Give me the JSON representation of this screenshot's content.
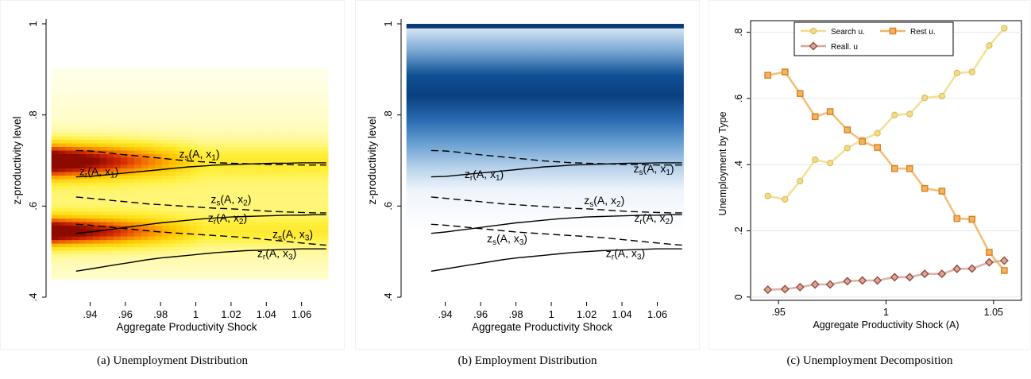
{
  "captions": {
    "a": "(a) Unemployment Distribution",
    "b": "(b) Employment Distribution",
    "c": "(c) Unemployment Decomposition"
  },
  "chart_data": [
    {
      "id": "a",
      "type": "heatmap",
      "title": "",
      "xlabel": "Aggregate Productivity Shock",
      "ylabel": "z-productivity level",
      "xlim": [
        0.915,
        1.08
      ],
      "ylim": [
        0.4,
        1.0
      ],
      "x_ticks": [
        0.94,
        0.96,
        0.98,
        1.0,
        1.02,
        1.04,
        1.06
      ],
      "x_tick_labels": [
        ".94",
        ".96",
        ".98",
        "1",
        "1.02",
        "1.04",
        "1.06"
      ],
      "y_ticks": [
        0.4,
        0.6,
        0.8,
        1.0
      ],
      "y_tick_labels": [
        ".4",
        ".6",
        ".8",
        "1"
      ],
      "heatmap_colors": "white-yellow-red",
      "grid": false,
      "x": [
        0.932,
        0.94,
        0.948,
        0.956,
        0.964,
        0.972,
        0.98,
        0.988,
        0.996,
        1.004,
        1.012,
        1.02,
        1.028,
        1.036,
        1.044,
        1.052,
        1.06,
        1.068,
        1.074
      ],
      "series": [
        {
          "name": "zs(A, x1)",
          "style": "dashed",
          "label_sub": "s",
          "label_x": "x",
          "label_idx": "1",
          "values": [
            0.722,
            0.721,
            0.718,
            0.714,
            0.711,
            0.708,
            0.705,
            0.702,
            0.699,
            0.697,
            0.695,
            0.694,
            0.693,
            0.692,
            0.691,
            0.691,
            0.69,
            0.69,
            0.69
          ]
        },
        {
          "name": "zr(A, x1)",
          "style": "solid",
          "label_sub": "r",
          "label_x": "x",
          "label_idx": "1",
          "values": [
            0.664,
            0.665,
            0.668,
            0.671,
            0.674,
            0.677,
            0.68,
            0.683,
            0.686,
            0.688,
            0.69,
            0.691,
            0.692,
            0.693,
            0.694,
            0.694,
            0.695,
            0.695,
            0.695
          ]
        },
        {
          "name": "zs(A, x2)",
          "style": "dashed",
          "label_sub": "s",
          "label_x": "x",
          "label_idx": "2",
          "values": [
            0.62,
            0.617,
            0.614,
            0.611,
            0.608,
            0.605,
            0.603,
            0.601,
            0.599,
            0.597,
            0.595,
            0.594,
            0.592,
            0.59,
            0.588,
            0.587,
            0.586,
            0.585,
            0.585
          ]
        },
        {
          "name": "zr(A, x2)",
          "style": "solid",
          "label_sub": "r",
          "label_x": "x",
          "label_idx": "2",
          "values": [
            0.54,
            0.543,
            0.547,
            0.551,
            0.555,
            0.559,
            0.563,
            0.566,
            0.569,
            0.572,
            0.574,
            0.576,
            0.577,
            0.578,
            0.579,
            0.58,
            0.58,
            0.581,
            0.581
          ]
        },
        {
          "name": "zs(A, x3)",
          "style": "dashed",
          "label_sub": "s",
          "label_x": "x",
          "label_idx": "3",
          "values": [
            0.56,
            0.558,
            0.555,
            0.552,
            0.549,
            0.546,
            0.543,
            0.541,
            0.539,
            0.537,
            0.535,
            0.533,
            0.531,
            0.528,
            0.525,
            0.522,
            0.519,
            0.516,
            0.514
          ]
        },
        {
          "name": "zr(A, x3)",
          "style": "solid",
          "label_sub": "r",
          "label_x": "x",
          "label_idx": "3",
          "values": [
            0.457,
            0.462,
            0.467,
            0.472,
            0.477,
            0.482,
            0.486,
            0.489,
            0.492,
            0.495,
            0.498,
            0.5,
            0.502,
            0.503,
            0.504,
            0.505,
            0.506,
            0.506,
            0.506
          ]
        }
      ],
      "curve_labels": [
        {
          "sub": "s",
          "idx": "1",
          "x": 1.002,
          "y": 0.706
        },
        {
          "sub": "r",
          "idx": "1",
          "x": 0.945,
          "y": 0.668
        },
        {
          "sub": "s",
          "idx": "2",
          "x": 1.02,
          "y": 0.607
        },
        {
          "sub": "r",
          "idx": "2",
          "x": 1.018,
          "y": 0.566
        },
        {
          "sub": "s",
          "idx": "3",
          "x": 1.055,
          "y": 0.53
        },
        {
          "sub": "r",
          "idx": "3",
          "x": 1.046,
          "y": 0.488
        }
      ]
    },
    {
      "id": "b",
      "type": "heatmap",
      "title": "",
      "xlabel": "Aggregate Productivity Shock",
      "ylabel": "z-productivity level",
      "xlim": [
        0.915,
        1.08
      ],
      "ylim": [
        0.4,
        1.0
      ],
      "x_ticks": [
        0.94,
        0.96,
        0.98,
        1.0,
        1.02,
        1.04,
        1.06
      ],
      "x_tick_labels": [
        ".94",
        ".96",
        ".98",
        "1",
        "1.02",
        "1.04",
        "1.06"
      ],
      "y_ticks": [
        0.4,
        0.6,
        0.8,
        1.0
      ],
      "y_tick_labels": [
        ".4",
        ".6",
        ".8",
        "1"
      ],
      "heatmap_colors": "white-blue",
      "grid": false,
      "curve_labels": [
        {
          "sub": "r",
          "idx": "1",
          "x": 0.962,
          "y": 0.662
        },
        {
          "sub": "s",
          "idx": "1",
          "x": 1.058,
          "y": 0.674
        },
        {
          "sub": "s",
          "idx": "2",
          "x": 1.03,
          "y": 0.604
        },
        {
          "sub": "r",
          "idx": "2",
          "x": 1.058,
          "y": 0.566
        },
        {
          "sub": "s",
          "idx": "3",
          "x": 0.975,
          "y": 0.52
        },
        {
          "sub": "r",
          "idx": "3",
          "x": 1.042,
          "y": 0.488
        }
      ]
    },
    {
      "id": "c",
      "type": "line",
      "title": "",
      "xlabel": "Aggregate Productivity Shock (A)",
      "ylabel": "Unemployment by Type",
      "xlim": [
        0.937,
        1.063
      ],
      "ylim": [
        -0.01,
        0.835
      ],
      "x_ticks": [
        0.95,
        1.0,
        1.05
      ],
      "x_tick_labels": [
        ".95",
        "1",
        "1.05"
      ],
      "y_ticks": [
        0,
        0.2,
        0.4,
        0.6,
        0.8
      ],
      "y_tick_labels": [
        "0",
        ".2",
        ".4",
        ".6",
        ".8"
      ],
      "grid": true,
      "legend_position": "top",
      "x": [
        0.945,
        0.953,
        0.96,
        0.967,
        0.974,
        0.982,
        0.989,
        0.996,
        1.004,
        1.011,
        1.018,
        1.026,
        1.033,
        1.04,
        1.048,
        1.055
      ],
      "series": [
        {
          "name": "Search u.",
          "color": "#f0dc8a",
          "edge": "#d8b84e",
          "marker": "circle",
          "values": [
            0.305,
            0.295,
            0.35,
            0.415,
            0.405,
            0.45,
            0.475,
            0.495,
            0.55,
            0.553,
            0.602,
            0.607,
            0.677,
            0.68,
            0.76,
            0.812
          ]
        },
        {
          "name": "Rest u.",
          "color": "#f2b464",
          "edge": "#d9821f",
          "marker": "square",
          "values": [
            0.67,
            0.68,
            0.615,
            0.545,
            0.56,
            0.505,
            0.47,
            0.452,
            0.388,
            0.388,
            0.328,
            0.32,
            0.237,
            0.235,
            0.135,
            0.08
          ]
        },
        {
          "name": "Reall. u",
          "color": "#d6a89a",
          "edge": "#9a4a3a",
          "marker": "diamond",
          "values": [
            0.022,
            0.024,
            0.03,
            0.038,
            0.038,
            0.048,
            0.05,
            0.05,
            0.06,
            0.06,
            0.07,
            0.07,
            0.085,
            0.086,
            0.105,
            0.11
          ]
        }
      ]
    }
  ]
}
